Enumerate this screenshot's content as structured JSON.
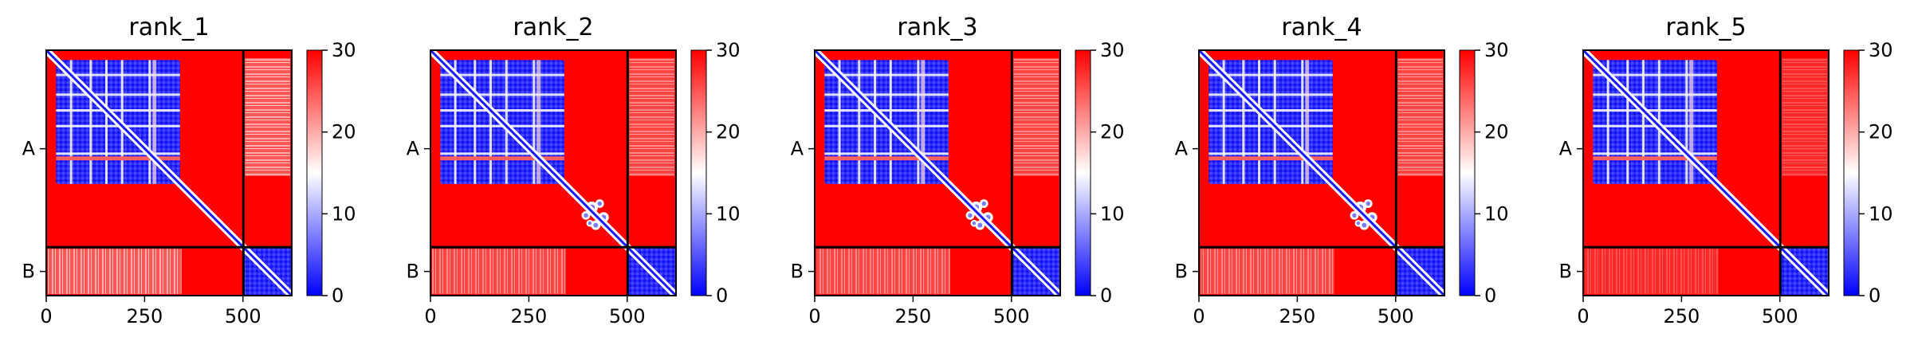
{
  "chart_data": {
    "type": "heatmap",
    "colormap": {
      "name": "bwr",
      "low": "#0000ff",
      "mid": "#ffffff",
      "high": "#ff0000",
      "vmin": 0,
      "vmax": 30
    },
    "colorbar_ticks": [
      "0",
      "10",
      "20",
      "30"
    ],
    "x_ticks": [
      "0",
      "250",
      "500"
    ],
    "y_ticks": [
      "A",
      "B"
    ],
    "chain_lengths": {
      "A": 501,
      "B": 123
    },
    "grid": false,
    "panels": [
      {
        "title": "rank_1",
        "blue_block_end": 340,
        "diagonal_cluster": false,
        "offdiag_pink": "strong"
      },
      {
        "title": "rank_2",
        "blue_block_end": 340,
        "diagonal_cluster": true,
        "offdiag_pink": "medium"
      },
      {
        "title": "rank_3",
        "blue_block_end": 340,
        "diagonal_cluster": true,
        "offdiag_pink": "medium"
      },
      {
        "title": "rank_4",
        "blue_block_end": 340,
        "diagonal_cluster": true,
        "offdiag_pink": "medium"
      },
      {
        "title": "rank_5",
        "blue_block_end": 340,
        "diagonal_cluster": false,
        "offdiag_pink": "faint"
      }
    ]
  }
}
